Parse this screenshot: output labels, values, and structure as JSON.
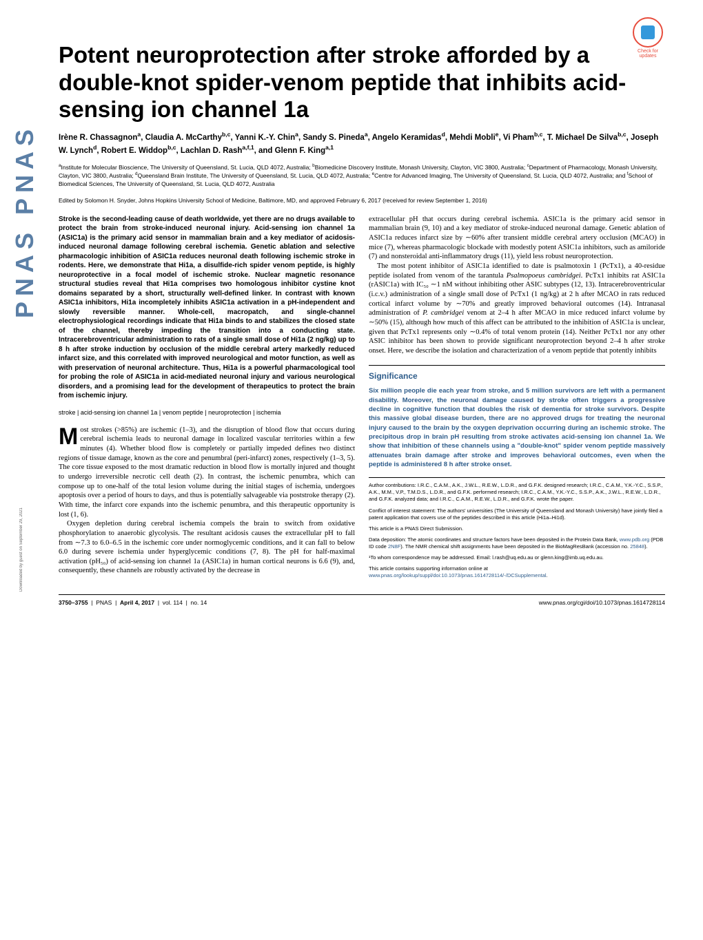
{
  "sidebar": {
    "text": "PNAS  PNAS"
  },
  "updates_badge": {
    "text": "Check for updates"
  },
  "title": "Potent neuroprotection after stroke afforded by a double-knot spider-venom peptide that inhibits acid-sensing ion channel 1a",
  "authors_html": "Irène R. Chassagnon<sup>a</sup>, Claudia A. McCarthy<sup>b,c</sup>, Yanni K.-Y. Chin<sup>a</sup>, Sandy S. Pineda<sup>a</sup>, Angelo Keramidas<sup>d</sup>, Mehdi Mobli<sup>e</sup>, Vi Pham<sup>b,c</sup>, T. Michael De Silva<sup>b,c</sup>, Joseph W. Lynch<sup>d</sup>, Robert E. Widdop<sup>b,c</sup>, Lachlan D. Rash<sup>a,f,1</sup>, and Glenn F. King<sup>a,1</sup>",
  "affiliations_html": "<sup>a</sup>Institute for Molecular Bioscience, The University of Queensland, St. Lucia, QLD 4072, Australia; <sup>b</sup>Biomedicine Discovery Institute, Monash University, Clayton, VIC 3800, Australia; <sup>c</sup>Department of Pharmacology, Monash University, Clayton, VIC 3800, Australia; <sup>d</sup>Queensland Brain Institute, The University of Queensland, St. Lucia, QLD 4072, Australia; <sup>e</sup>Centre for Advanced Imaging, The University of Queensland, St. Lucia, QLD 4072, Australia; and <sup>f</sup>School of Biomedical Sciences, The University of Queensland, St. Lucia, QLD 4072, Australia",
  "edited_by": "Edited by Solomon H. Snyder, Johns Hopkins University School of Medicine, Baltimore, MD, and approved February 6, 2017 (received for review September 1, 2016)",
  "abstract": "Stroke is the second-leading cause of death worldwide, yet there are no drugs available to protect the brain from stroke-induced neuronal injury. Acid-sensing ion channel 1a (ASIC1a) is the primary acid sensor in mammalian brain and a key mediator of acidosis-induced neuronal damage following cerebral ischemia. Genetic ablation and selective pharmacologic inhibition of ASIC1a reduces neuronal death following ischemic stroke in rodents. Here, we demonstrate that Hi1a, a disulfide-rich spider venom peptide, is highly neuroprotective in a focal model of ischemic stroke. Nuclear magnetic resonance structural studies reveal that Hi1a comprises two homologous inhibitor cystine knot domains separated by a short, structurally well-defined linker. In contrast with known ASIC1a inhibitors, Hi1a incompletely inhibits ASIC1a activation in a pH-independent and slowly reversible manner. Whole-cell, macropatch, and single-channel electrophysiological recordings indicate that Hi1a binds to and stabilizes the closed state of the channel, thereby impeding the transition into a conducting state. Intracerebroventricular administration to rats of a single small dose of Hi1a (2 ng/kg) up to 8 h after stroke induction by occlusion of the middle cerebral artery markedly reduced infarct size, and this correlated with improved neurological and motor function, as well as with preservation of neuronal architecture. Thus, Hi1a is a powerful pharmacological tool for probing the role of ASIC1a in acid-mediated neuronal injury and various neurological disorders, and a promising lead for the development of therapeutics to protect the brain from ischemic injury.",
  "keywords": "stroke | acid-sensing ion channel 1a | venom peptide | neuroprotection | ischemia",
  "body_p1": "ost strokes (>85%) are ischemic (1–3), and the disruption of blood flow that occurs during cerebral ischemia leads to neuronal damage in localized vascular territories within a few minutes (4). Whether blood flow is completely or partially impeded defines two distinct regions of tissue damage, known as the core and penumbral (peri-infarct) zones, respectively (1–3, 5). The core tissue exposed to the most dramatic reduction in blood flow is mortally injured and thought to undergo irreversible necrotic cell death (2). In contrast, the ischemic penumbra, which can compose up to one-half of the total lesion volume during the initial stages of ischemia, undergoes apoptosis over a period of hours to days, and thus is potentially salvageable via poststroke therapy (2). With time, the infarct core expands into the ischemic penumbra, and this therapeutic opportunity is lost (1, 6).",
  "body_p2": "Oxygen depletion during cerebral ischemia compels the brain to switch from oxidative phosphorylation to anaerobic glycolysis. The resultant acidosis causes the extracellular pH to fall from ∼7.3 to 6.0–6.5 in the ischemic core under normoglycemic conditions, and it can fall to below 6.0 during severe ischemia under hyperglycemic conditions (7, 8). The pH for half-maximal activation (pH₅₀) of acid-sensing ion channel 1a (ASIC1a) in human cortical neurons is 6.6 (9), and, consequently, these channels are robustly activated by the decrease in",
  "body_col2_p1": "extracellular pH that occurs during cerebral ischemia. ASIC1a is the primary acid sensor in mammalian brain (9, 10) and a key mediator of stroke-induced neuronal damage. Genetic ablation of ASIC1a reduces infarct size by ∼60% after transient middle cerebral artery occlusion (MCAO) in mice (7), whereas pharmacologic blockade with modestly potent ASIC1a inhibitors, such as amiloride (7) and nonsteroidal anti-inflammatory drugs (11), yield less robust neuroprotection.",
  "body_col2_p2_html": "The most potent inhibitor of ASIC1a identified to date is psalmotoxin 1 (PcTx1), a 40-residue peptide isolated from venom of the tarantula <i>Psalmopoeus cambridgei</i>. PcTx1 inhibits rat ASIC1a (rASIC1a) with IC₅₀ ∼1 nM without inhibiting other ASIC subtypes (12, 13). Intracerebroventricular (i.c.v.) administration of a single small dose of PcTx1 (1 ng/kg) at 2 h after MCAO in rats reduced cortical infarct volume by ∼70% and greatly improved behavioral outcomes (14). Intranasal administration of <i>P. cambridgei</i> venom at 2–4 h after MCAO in mice reduced infarct volume by ∼50% (15), although how much of this affect can be attributed to the inhibition of ASIC1a is unclear, given that PcTx1 represents only ∼0.4% of total venom protein (14). Neither PcTx1 nor any other ASIC inhibitor has been shown to provide significant neuroprotection beyond 2–4 h after stroke onset. Here, we describe the isolation and characterization of a venom peptide that potently inhibits",
  "significance": {
    "title": "Significance",
    "text": "Six million people die each year from stroke, and 5 million survivors are left with a permanent disability. Moreover, the neuronal damage caused by stroke often triggers a progressive decline in cognitive function that doubles the risk of dementia for stroke survivors. Despite this massive global disease burden, there are no approved drugs for treating the neuronal injury caused to the brain by the oxygen deprivation occurring during an ischemic stroke. The precipitous drop in brain pH resulting from stroke activates acid-sensing ion channel 1a. We show that inhibition of these channels using a \"double-knot\" spider venom peptide massively attenuates brain damage after stroke and improves behavioral outcomes, even when the peptide is administered 8 h after stroke onset."
  },
  "contributions": {
    "p1": "Author contributions: I.R.C., C.A.M., A.K., J.W.L., R.E.W., L.D.R., and G.F.K. designed research; I.R.C., C.A.M., Y.K.-Y.C., S.S.P., A.K., M.M., V.P., T.M.D.S., L.D.R., and G.F.K. performed research; I.R.C., C.A.M., Y.K.-Y.C., S.S.P., A.K., J.W.L., R.E.W., L.D.R., and G.F.K. analyzed data; and I.R.C., C.A.M., R.E.W., L.D.R., and G.F.K. wrote the paper.",
    "p2": "Conflict of interest statement: The authors' universities (The University of Queensland and Monash University) have jointly filed a patent application that covers use of the peptides described in this article (Hi1a–Hi1d).",
    "p3": "This article is a PNAS Direct Submission.",
    "p4_html": "Data deposition: The atomic coordinates and structure factors have been deposited in the Protein Data Bank, <span class=\"link\">www.pdb.org</span> (PDB ID code <span class=\"link\">2N8F</span>). The NMR chemical shift assignments have been deposited in the BioMagResBank (accession no. <span class=\"link\">25848</span>).",
    "p5": "¹To whom correspondence may be addressed. Email: l.rash@uq.edu.au or glenn.king@imb.uq.edu.au.",
    "p6_html": "This article contains supporting information online at <span class=\"link\">www.pnas.org/lookup/suppl/doi:10.1073/pnas.1614728114/-/DCSupplemental</span>."
  },
  "footer": {
    "left_html": "<b>3750–3755</b> &nbsp;|&nbsp; PNAS &nbsp;|&nbsp; <b>April 4, 2017</b> &nbsp;|&nbsp; vol. 114 &nbsp;|&nbsp; no. 14",
    "right": "www.pnas.org/cgi/doi/10.1073/pnas.1614728114"
  },
  "download_note": "Downloaded by guest on September 29, 2021"
}
